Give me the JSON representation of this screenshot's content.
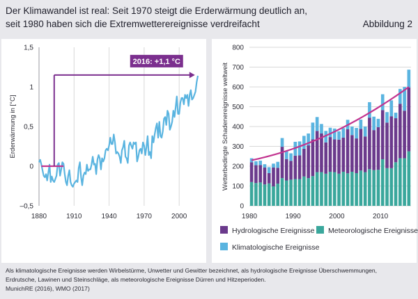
{
  "header": {
    "title_line1": "Der Klimawandel ist real: Seit 1970 steigt die Erderwärmung deutlich an,",
    "title_line2": "seit 1980 haben sich die Extremwetterereignisse verdreifacht",
    "figure_label": "Abbildung 2"
  },
  "footer": {
    "line1": "Als klimatologische Ereignisse werden Wirbelstürme, Unwetter und Gewitter bezeichnet, als hydrologische Ereignisse Überschwemmungen,",
    "line2": "Erdrutsche, Lawinen und Steinschläge, als meteorologische Ereignisse Dürren und Hitzeperioden.",
    "line3": "MunichRE (2016), WMO (2017)"
  },
  "colors": {
    "temperature_line": "#5ab4e0",
    "annotation": "#7b2f8e",
    "baseline": "#c2338f",
    "meteorological": "#3aa79c",
    "hydrological": "#6b3a8c",
    "climatological": "#5ab4e0",
    "trend": "#c2338f",
    "grid": "#d8d8d8"
  },
  "chart_data": [
    {
      "type": "line",
      "title": "",
      "xlabel": "",
      "ylabel": "Erderwärmung in [°C]",
      "xlim": [
        1880,
        2016
      ],
      "ylim": [
        -0.5,
        1.5
      ],
      "xticks": [
        1880,
        1910,
        1940,
        1970,
        2000
      ],
      "yticks": [
        {
          "value": -0.5,
          "label": "–0,5"
        },
        {
          "value": 0,
          "label": "0"
        },
        {
          "value": 0.5,
          "label": "0,5"
        },
        {
          "value": 1,
          "label": "1"
        },
        {
          "value": 1.5,
          "label": "1,5"
        }
      ],
      "grid": "vertical",
      "annotation": {
        "label": "2016: +1,1 °C",
        "start_year": 1893,
        "arrow_value": 1.15
      },
      "baseline": {
        "x": [
          1882,
          1901
        ],
        "value": 0
      },
      "series": [
        {
          "name": "Erderwärmung",
          "x": [
            1880,
            1881,
            1882,
            1883,
            1884,
            1885,
            1886,
            1887,
            1888,
            1889,
            1890,
            1891,
            1892,
            1893,
            1894,
            1895,
            1896,
            1897,
            1898,
            1899,
            1900,
            1901,
            1902,
            1903,
            1904,
            1905,
            1906,
            1907,
            1908,
            1909,
            1910,
            1911,
            1912,
            1913,
            1914,
            1915,
            1916,
            1917,
            1918,
            1919,
            1920,
            1921,
            1922,
            1923,
            1924,
            1925,
            1926,
            1927,
            1928,
            1929,
            1930,
            1931,
            1932,
            1933,
            1934,
            1935,
            1936,
            1937,
            1938,
            1939,
            1940,
            1941,
            1942,
            1943,
            1944,
            1945,
            1946,
            1947,
            1948,
            1949,
            1950,
            1951,
            1952,
            1953,
            1954,
            1955,
            1956,
            1957,
            1958,
            1959,
            1960,
            1961,
            1962,
            1963,
            1964,
            1965,
            1966,
            1967,
            1968,
            1969,
            1970,
            1971,
            1972,
            1973,
            1974,
            1975,
            1976,
            1977,
            1978,
            1979,
            1980,
            1981,
            1982,
            1983,
            1984,
            1985,
            1986,
            1987,
            1988,
            1989,
            1990,
            1991,
            1992,
            1993,
            1994,
            1995,
            1996,
            1997,
            1998,
            1999,
            2000,
            2001,
            2002,
            2003,
            2004,
            2005,
            2006,
            2007,
            2008,
            2009,
            2010,
            2011,
            2012,
            2013,
            2014,
            2015,
            2016
          ],
          "values": [
            0.05,
            0.08,
            0.02,
            -0.05,
            -0.12,
            -0.14,
            -0.1,
            -0.18,
            -0.08,
            0.02,
            -0.2,
            -0.13,
            -0.18,
            -0.2,
            -0.16,
            -0.12,
            0.02,
            0.04,
            -0.12,
            -0.04,
            0.05,
            0.03,
            -0.1,
            -0.2,
            -0.24,
            -0.12,
            -0.05,
            -0.2,
            -0.24,
            -0.26,
            -0.22,
            -0.2,
            -0.18,
            -0.2,
            -0.02,
            0.05,
            -0.14,
            -0.24,
            -0.12,
            -0.08,
            -0.1,
            0.02,
            -0.06,
            -0.04,
            -0.04,
            0.02,
            0.12,
            0.02,
            0.03,
            -0.1,
            0.08,
            0.14,
            0.1,
            -0.04,
            0.1,
            0.06,
            0.1,
            0.2,
            0.22,
            0.2,
            0.26,
            0.36,
            0.28,
            0.28,
            0.4,
            0.3,
            0.16,
            0.18,
            0.16,
            0.12,
            0.04,
            0.2,
            0.24,
            0.32,
            0.12,
            0.1,
            0.04,
            0.26,
            0.3,
            0.26,
            0.22,
            0.3,
            0.28,
            0.3,
            0.06,
            0.12,
            0.2,
            0.22,
            0.16,
            0.3,
            0.26,
            0.14,
            0.24,
            0.38,
            0.14,
            0.18,
            0.1,
            0.38,
            0.3,
            0.4,
            0.48,
            0.54,
            0.36,
            0.56,
            0.38,
            0.36,
            0.44,
            0.6,
            0.62,
            0.52,
            0.7,
            0.66,
            0.46,
            0.5,
            0.56,
            0.7,
            0.62,
            0.74,
            0.88,
            0.66,
            0.66,
            0.8,
            0.86,
            0.86,
            0.78,
            0.9,
            0.86,
            0.9,
            0.76,
            0.9,
            0.96,
            0.84,
            0.86,
            0.9,
            0.94,
            1.06,
            1.14
          ]
        }
      ]
    },
    {
      "type": "bar",
      "stacked": true,
      "title": "",
      "xlabel": "",
      "ylabel": "Wetterbedingte Schadenereignisse weltweit",
      "xlim": [
        1980,
        2016
      ],
      "ylim": [
        0,
        800
      ],
      "xticks": [
        1980,
        1990,
        2000,
        2010
      ],
      "yticks": [
        0,
        100,
        200,
        300,
        400,
        500,
        600,
        700,
        800
      ],
      "grid": "horizontal",
      "legend": "bottom",
      "categories": [
        1980,
        1981,
        1982,
        1983,
        1984,
        1985,
        1986,
        1987,
        1988,
        1989,
        1990,
        1991,
        1992,
        1993,
        1994,
        1995,
        1996,
        1997,
        1998,
        1999,
        2000,
        2001,
        2002,
        2003,
        2004,
        2005,
        2006,
        2007,
        2008,
        2009,
        2010,
        2011,
        2012,
        2013,
        2014,
        2015,
        2016
      ],
      "series": [
        {
          "name": "Meteorologische Ereignisse",
          "values": [
            120,
            115,
            118,
            108,
            113,
            98,
            112,
            140,
            128,
            132,
            135,
            135,
            148,
            140,
            150,
            170,
            170,
            162,
            172,
            170,
            162,
            172,
            164,
            172,
            165,
            178,
            170,
            185,
            180,
            182,
            235,
            190,
            190,
            220,
            240,
            240,
            275
          ]
        },
        {
          "name": "Hydrologische Ereignisse",
          "values": [
            100,
            90,
            88,
            85,
            52,
            95,
            80,
            158,
            108,
            95,
            118,
            120,
            140,
            165,
            185,
            208,
            195,
            158,
            175,
            165,
            172,
            172,
            222,
            185,
            175,
            210,
            180,
            260,
            202,
            215,
            248,
            230,
            262,
            222,
            275,
            240,
            322
          ]
        },
        {
          "name": "Klimatologische Ereignisse",
          "values": [
            20,
            20,
            22,
            17,
            30,
            20,
            30,
            44,
            40,
            38,
            70,
            70,
            65,
            60,
            85,
            70,
            48,
            58,
            47,
            55,
            42,
            48,
            48,
            43,
            53,
            47,
            50,
            78,
            68,
            42,
            80,
            53,
            80,
            28,
            75,
            120,
            90
          ]
        }
      ],
      "trend": {
        "name": "Trend",
        "x": [
          1980,
          2016
        ],
        "values": [
          230,
          600
        ]
      },
      "legend_entries": [
        "Hydrologische Ereignisse",
        "Meteorologische Ereignisse",
        "Klimatologische Ereignisse"
      ]
    }
  ]
}
